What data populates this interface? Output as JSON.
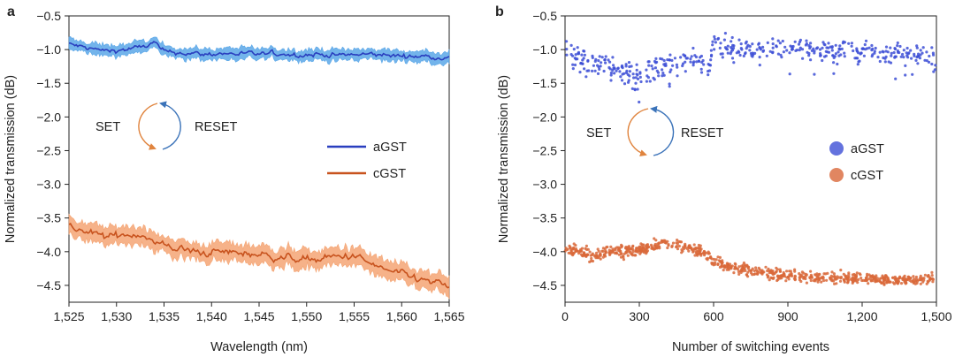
{
  "chart_data": [
    {
      "panel": "a",
      "type": "line",
      "xlabel": "Wavelength (nm)",
      "ylabel": "Normalized transmission (dB)",
      "xlim": [
        1525,
        1565
      ],
      "ylim": [
        -4.75,
        -0.5
      ],
      "xticks": [
        1525,
        1530,
        1535,
        1540,
        1545,
        1550,
        1555,
        1560,
        1565
      ],
      "xtick_labels": [
        "1,525",
        "1,530",
        "1,535",
        "1,540",
        "1,545",
        "1,550",
        "1,555",
        "1,560",
        "1,565"
      ],
      "yticks": [
        -0.5,
        -1.0,
        -1.5,
        -2.0,
        -2.5,
        -3.0,
        -3.5,
        -4.0,
        -4.5
      ],
      "ytick_labels": [
        "−0.5",
        "−1.0",
        "−1.5",
        "−2.0",
        "−2.5",
        "−3.0",
        "−3.5",
        "−4.0",
        "−4.5"
      ],
      "series": [
        {
          "name": "aGST",
          "color": "#2a3fbf",
          "band_color": "#5aa7e8",
          "x": [
            1525,
            1527,
            1529,
            1531,
            1533,
            1534,
            1535,
            1537,
            1539,
            1541,
            1543,
            1545,
            1547,
            1549,
            1551,
            1553,
            1555,
            1557,
            1559,
            1561,
            1563,
            1565
          ],
          "values": [
            -0.92,
            -0.98,
            -1.02,
            -1.0,
            -0.95,
            -0.9,
            -1.03,
            -1.05,
            -1.07,
            -1.06,
            -1.06,
            -1.07,
            -1.06,
            -1.08,
            -1.07,
            -1.08,
            -1.08,
            -1.07,
            -1.09,
            -1.1,
            -1.1,
            -1.12
          ],
          "band_halfwidth": 0.08
        },
        {
          "name": "cGST",
          "color": "#c8531e",
          "band_color": "#f4a574",
          "x": [
            1525,
            1527,
            1529,
            1531,
            1533,
            1534,
            1535,
            1537,
            1539,
            1541,
            1543,
            1545,
            1547,
            1549,
            1551,
            1553,
            1555,
            1557,
            1559,
            1561,
            1563,
            1565
          ],
          "values": [
            -3.62,
            -3.72,
            -3.78,
            -3.74,
            -3.75,
            -3.88,
            -3.9,
            -3.97,
            -4.02,
            -4.0,
            -4.02,
            -4.04,
            -4.08,
            -4.1,
            -4.12,
            -4.08,
            -4.06,
            -4.2,
            -4.3,
            -4.38,
            -4.45,
            -4.52
          ],
          "band_halfwidth": 0.13
        }
      ],
      "legend": [
        "aGST",
        "cGST"
      ],
      "annotations": {
        "set": "SET",
        "reset": "RESET"
      }
    },
    {
      "panel": "b",
      "type": "scatter",
      "xlabel": "Number of switching events",
      "ylabel": "Normalized transmission (dB)",
      "xlim": [
        0,
        1500
      ],
      "ylim": [
        -4.75,
        -0.5
      ],
      "xticks": [
        0,
        300,
        600,
        900,
        1200,
        1500
      ],
      "xtick_labels": [
        "0",
        "300",
        "600",
        "900",
        "1,200",
        "1,500"
      ],
      "yticks": [
        -0.5,
        -1.0,
        -1.5,
        -2.0,
        -2.5,
        -3.0,
        -3.5,
        -4.0,
        -4.5
      ],
      "ytick_labels": [
        "−0.5",
        "−1.0",
        "−1.5",
        "−2.0",
        "−2.5",
        "−3.0",
        "−3.5",
        "−4.0",
        "−4.5"
      ],
      "series": [
        {
          "name": "aGST",
          "color": "#3d4fd6",
          "x": [
            0,
            50,
            100,
            150,
            200,
            250,
            300,
            350,
            400,
            450,
            500,
            550,
            580,
            600,
            650,
            700,
            800,
            900,
            1000,
            1100,
            1200,
            1300,
            1400,
            1500
          ],
          "values": [
            -0.9,
            -1.1,
            -1.2,
            -1.25,
            -1.3,
            -1.35,
            -1.4,
            -1.3,
            -1.25,
            -1.2,
            -1.15,
            -1.2,
            -1.3,
            -0.9,
            -0.95,
            -1.0,
            -1.0,
            -0.98,
            -1.0,
            -1.02,
            -1.0,
            -1.05,
            -1.08,
            -1.1
          ],
          "scatter_sd": 0.16
        },
        {
          "name": "cGST",
          "color": "#d9683a",
          "x": [
            0,
            50,
            100,
            150,
            200,
            250,
            300,
            350,
            400,
            450,
            500,
            550,
            580,
            600,
            650,
            700,
            800,
            900,
            1000,
            1100,
            1200,
            1300,
            1400,
            1500
          ],
          "values": [
            -3.95,
            -4.0,
            -4.05,
            -4.02,
            -4.0,
            -4.0,
            -3.98,
            -3.92,
            -3.85,
            -3.9,
            -3.95,
            -4.0,
            -4.05,
            -4.15,
            -4.2,
            -4.25,
            -4.3,
            -4.35,
            -4.38,
            -4.4,
            -4.4,
            -4.42,
            -4.42,
            -4.4
          ],
          "scatter_sd": 0.08
        }
      ],
      "legend": [
        "aGST",
        "cGST"
      ],
      "annotations": {
        "set": "SET",
        "reset": "RESET"
      }
    }
  ]
}
